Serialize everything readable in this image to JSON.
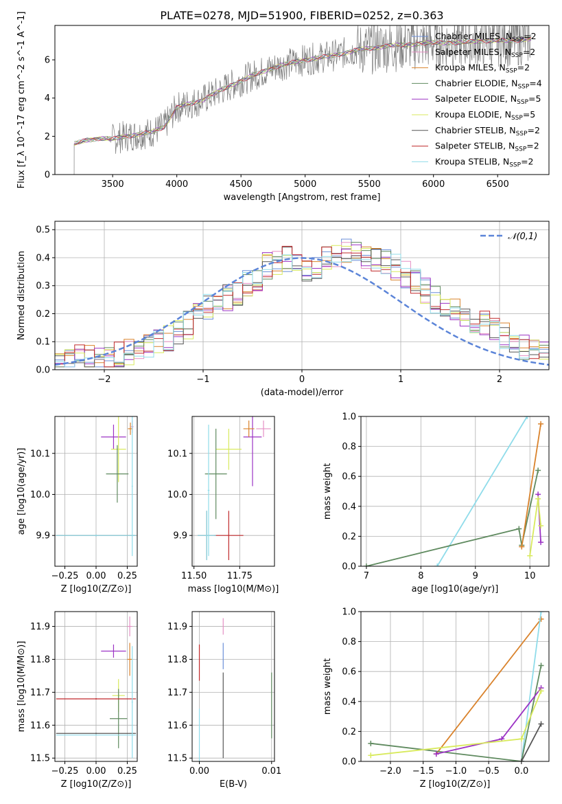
{
  "title": "PLATE=0278, MJD=51900, FIBERID=0252, z=0.363",
  "colors": {
    "Chabrier MILES": "#6a8ed8",
    "Salpeter MILES": "#e58fc4",
    "Kroupa MILES": "#d9822b",
    "Chabrier ELODIE": "#5f8a5f",
    "Salpeter ELODIE": "#9b32c4",
    "Kroupa ELODIE": "#d8ea5c",
    "Chabrier STELIB": "#555555",
    "Salpeter STELIB": "#c0282a",
    "Kroupa STELIB": "#8fdcea",
    "gauss": "#5b84d8"
  },
  "chart_data": [
    {
      "id": "spectrum",
      "type": "line",
      "xlabel": "wavelength [Angstrom, rest frame]",
      "ylabel": "Flux [f_λ 10^-17 erg cm^-2 s^-1 A^-1]",
      "xlim": [
        3050,
        6900
      ],
      "ylim": [
        0,
        7.8
      ],
      "xticks": [
        3500,
        4000,
        4500,
        5000,
        5500,
        6000,
        6500
      ],
      "yticks": [
        0,
        2,
        4,
        6
      ],
      "legend_position": "top-right",
      "legend": [
        {
          "name": "Chabrier MILES",
          "nssp": "2"
        },
        {
          "name": "Salpeter MILES",
          "nssp": "2"
        },
        {
          "name": "Kroupa MILES",
          "nssp": "2"
        },
        {
          "name": "Chabrier ELODIE",
          "nssp": "4"
        },
        {
          "name": "Salpeter ELODIE",
          "nssp": "5"
        },
        {
          "name": "Kroupa ELODIE",
          "nssp": "5"
        },
        {
          "name": "Chabrier STELIB",
          "nssp": "2"
        },
        {
          "name": "Salpeter STELIB",
          "nssp": "2"
        },
        {
          "name": "Kroupa STELIB",
          "nssp": "2"
        }
      ],
      "model_continuum": {
        "x": [
          3200,
          3300,
          3400,
          3500,
          3600,
          3700,
          3800,
          3900,
          4000,
          4200,
          4400,
          4600,
          4800,
          5000,
          5200,
          5400,
          5600,
          5800,
          6000,
          6200,
          6400,
          6600,
          6750
        ],
        "y": [
          1.6,
          1.8,
          1.9,
          1.85,
          2.0,
          2.1,
          2.2,
          2.5,
          3.5,
          3.9,
          4.6,
          5.2,
          5.7,
          6.0,
          6.2,
          6.5,
          6.7,
          6.8,
          6.9,
          6.9,
          7.0,
          7.0,
          7.1
        ]
      }
    },
    {
      "id": "residuals",
      "type": "histogram",
      "xlabel": "(data-model)/error",
      "ylabel": "Normed distribution",
      "xlim": [
        -2.5,
        2.5
      ],
      "ylim": [
        0,
        0.53
      ],
      "xticks": [
        -2,
        -1,
        0,
        1,
        2
      ],
      "yticks": [
        0.0,
        0.1,
        0.2,
        0.3,
        0.4,
        0.5
      ],
      "legend_position": "top-right",
      "legend": [
        "𝒩(0,1)"
      ],
      "bin_width": 0.1,
      "bin_start": -2.5,
      "hist_base": [
        0.03,
        0.03,
        0.04,
        0.04,
        0.05,
        0.04,
        0.05,
        0.06,
        0.07,
        0.08,
        0.1,
        0.11,
        0.14,
        0.16,
        0.2,
        0.22,
        0.26,
        0.26,
        0.28,
        0.31,
        0.33,
        0.37,
        0.39,
        0.4,
        0.39,
        0.36,
        0.37,
        0.39,
        0.4,
        0.42,
        0.43,
        0.41,
        0.39,
        0.38,
        0.37,
        0.34,
        0.31,
        0.28,
        0.25,
        0.23,
        0.21,
        0.2,
        0.18,
        0.16,
        0.14,
        0.12,
        0.1,
        0.08,
        0.06,
        0.05
      ]
    },
    {
      "id": "age-vs-Z",
      "type": "errorbar",
      "xlabel": "Z [log10(Z/Z⊙)]",
      "ylabel": "age  [log10(age/yr)]",
      "xlim": [
        -0.33,
        0.33
      ],
      "ylim": [
        9.825,
        10.19
      ],
      "xticks": [
        -0.25,
        0.0,
        0.25
      ],
      "yticks": [
        9.9,
        10.0,
        10.1
      ],
      "points": [
        {
          "series": "Salpeter ELODIE",
          "x": 0.14,
          "xerr": 0.1,
          "y": 10.14,
          "yerr": 0.03
        },
        {
          "series": "Kroupa ELODIE",
          "x": 0.18,
          "xerr": 0.06,
          "y": 10.11,
          "yerr": 0.08
        },
        {
          "series": "Chabrier ELODIE",
          "x": 0.17,
          "xerr": 0.09,
          "y": 10.05,
          "yerr": 0.07
        },
        {
          "series": "Kroupa MILES",
          "x": 0.275,
          "xerr": 0.02,
          "y": 10.16,
          "yerr": 0.015
        },
        {
          "series": "Salpeter MILES",
          "x": 0.29,
          "xerr": 0.01,
          "y": 10.165,
          "yerr": 0.015
        },
        {
          "series": "Chabrier STELIB",
          "x": 0.0,
          "xerr": 0.32,
          "y": 9.9,
          "yerr": 0.002
        },
        {
          "series": "Kroupa STELIB",
          "x": 0.0,
          "xerr": 0.32,
          "y": 9.9,
          "yerr": 0.002
        },
        {
          "series": "Kroupa STELIB",
          "x": 0.29,
          "xerr": 0.005,
          "y": 10.02,
          "yerr": 0.17
        }
      ]
    },
    {
      "id": "age-vs-mass",
      "type": "errorbar",
      "xlabel": "mass [log10(M/M⊙)]",
      "ylabel": "",
      "xlim": [
        11.49,
        11.94
      ],
      "ylim": [
        9.825,
        10.19
      ],
      "xticks": [
        11.5,
        11.75
      ],
      "yticks": [
        9.9,
        10.0,
        10.1
      ],
      "points": [
        {
          "series": "Salpeter ELODIE",
          "x": 11.82,
          "xerr": 0.05,
          "y": 10.14,
          "yerr": 0.12
        },
        {
          "series": "Kroupa ELODIE",
          "x": 11.69,
          "xerr": 0.07,
          "y": 10.11,
          "yerr": 0.05
        },
        {
          "series": "Chabrier ELODIE",
          "x": 11.62,
          "xerr": 0.06,
          "y": 10.05,
          "yerr": 0.11
        },
        {
          "series": "Kroupa MILES",
          "x": 11.8,
          "xerr": 0.03,
          "y": 10.16,
          "yerr": 0.02
        },
        {
          "series": "Salpeter MILES",
          "x": 11.88,
          "xerr": 0.04,
          "y": 10.16,
          "yerr": 0.02
        },
        {
          "series": "Salpeter STELIB",
          "x": 11.69,
          "xerr": 0.08,
          "y": 9.9,
          "yerr": 0.06
        },
        {
          "series": "Chabrier STELIB",
          "x": 11.57,
          "xerr": 0.05,
          "y": 9.9,
          "yerr": 0.06
        },
        {
          "series": "Kroupa STELIB",
          "x": 11.57,
          "xerr": 0.05,
          "y": 9.9,
          "yerr": 0.06
        },
        {
          "series": "Kroupa STELIB",
          "x": 11.58,
          "xerr": 0.005,
          "y": 10.01,
          "yerr": 0.16
        }
      ]
    },
    {
      "id": "weight-vs-age",
      "type": "line",
      "xlabel": "age  [log10(age/yr)]",
      "ylabel": "mass weight",
      "xlim": [
        6.9,
        10.35
      ],
      "ylim": [
        0,
        1
      ],
      "xticks": [
        7,
        8,
        9,
        10
      ],
      "yticks": [
        0.0,
        0.2,
        0.4,
        0.6,
        0.8,
        1.0
      ],
      "series": [
        {
          "name": "Kroupa STELIB",
          "x": [
            8.3,
            9.95
          ],
          "y": [
            0.0,
            1.0
          ]
        },
        {
          "name": "Chabrier ELODIE",
          "x": [
            7.0,
            9.8,
            9.85,
            10.15
          ],
          "y": [
            0.0,
            0.25,
            0.14,
            0.64
          ]
        },
        {
          "name": "Kroupa MILES",
          "x": [
            9.85,
            10.2
          ],
          "y": [
            0.13,
            0.95
          ]
        },
        {
          "name": "Salpeter ELODIE",
          "x": [
            10.15,
            10.2
          ],
          "y": [
            0.48,
            0.16
          ]
        },
        {
          "name": "Kroupa ELODIE",
          "x": [
            10.0,
            10.15,
            10.2
          ],
          "y": [
            0.07,
            0.45,
            0.27
          ]
        }
      ]
    },
    {
      "id": "mass-vs-Z",
      "type": "errorbar",
      "xlabel": "Z [log10(Z/Z⊙)]",
      "ylabel": "mass [log10(M/M⊙)]",
      "xlim": [
        -0.33,
        0.33
      ],
      "ylim": [
        11.49,
        11.945
      ],
      "xticks": [
        -0.25,
        0.0,
        0.25
      ],
      "yticks": [
        11.5,
        11.6,
        11.7,
        11.8,
        11.9
      ],
      "points": [
        {
          "series": "Salpeter ELODIE",
          "x": 0.14,
          "xerr": 0.1,
          "y": 11.825,
          "yerr": 0.02
        },
        {
          "series": "Kroupa ELODIE",
          "x": 0.18,
          "xerr": 0.05,
          "y": 11.69,
          "yerr": 0.05
        },
        {
          "series": "Chabrier ELODIE",
          "x": 0.18,
          "xerr": 0.07,
          "y": 11.62,
          "yerr": 0.09
        },
        {
          "series": "Salpeter STELIB",
          "x": 0.0,
          "xerr": 0.32,
          "y": 11.68,
          "yerr": 0.002
        },
        {
          "series": "Chabrier STELIB",
          "x": 0.0,
          "xerr": 0.32,
          "y": 11.575,
          "yerr": 0.002
        },
        {
          "series": "Kroupa STELIB",
          "x": 0.0,
          "xerr": 0.32,
          "y": 11.57,
          "yerr": 0.002
        },
        {
          "series": "Kroupa MILES",
          "x": 0.27,
          "xerr": 0.02,
          "y": 11.8,
          "yerr": 0.05
        },
        {
          "series": "Salpeter MILES",
          "x": 0.27,
          "xerr": 0.02,
          "y": 11.9,
          "yerr": 0.03
        },
        {
          "series": "Kroupa STELIB",
          "x": 0.29,
          "xerr": 0.005,
          "y": 11.67,
          "yerr": 0.17
        }
      ]
    },
    {
      "id": "mass-vs-EBV",
      "type": "errorbar",
      "xlabel": "E(B-V)",
      "ylabel": "",
      "xlim": [
        -0.001,
        0.0104
      ],
      "ylim": [
        11.49,
        11.945
      ],
      "xticks": [
        0.0,
        0.01
      ],
      "yticks": [
        11.5,
        11.6,
        11.7,
        11.8,
        11.9
      ],
      "points": [
        {
          "series": "Salpeter STELIB",
          "x": 0.0,
          "xerr": 0,
          "y": 11.79,
          "yerr": 0.055
        },
        {
          "series": "Kroupa STELIB",
          "x": 0.0,
          "xerr": 0,
          "y": 11.57,
          "yerr": 0.08
        },
        {
          "series": "Chabrier STELIB",
          "x": 0.0033,
          "xerr": 0,
          "y": 11.63,
          "yerr": 0.13
        },
        {
          "series": "Chabrier MILES",
          "x": 0.0033,
          "xerr": 0,
          "y": 11.81,
          "yerr": 0.04
        },
        {
          "series": "Salpeter MILES",
          "x": 0.0033,
          "xerr": 0,
          "y": 11.9,
          "yerr": 0.025
        },
        {
          "series": "Chabrier ELODIE",
          "x": 0.01,
          "xerr": 0,
          "y": 11.66,
          "yerr": 0.1
        }
      ]
    },
    {
      "id": "weight-vs-Z",
      "type": "line",
      "xlabel": "Z [log10(Z/Z⊙)]",
      "ylabel": "mass weight",
      "xlim": [
        -2.45,
        0.42
      ],
      "ylim": [
        0,
        1
      ],
      "xticks": [
        -2.0,
        -1.5,
        -1.0,
        -0.5,
        0.0
      ],
      "yticks": [
        0.0,
        0.2,
        0.4,
        0.6,
        0.8,
        1.0
      ],
      "series": [
        {
          "name": "Kroupa MILES",
          "x": [
            -1.3,
            0.3
          ],
          "y": [
            0.05,
            0.95
          ]
        },
        {
          "name": "Kroupa STELIB",
          "x": [
            0.0,
            0.3
          ],
          "y": [
            0.0,
            1.0
          ]
        },
        {
          "name": "Chabrier ELODIE",
          "x": [
            -2.3,
            0.0,
            0.3
          ],
          "y": [
            0.12,
            0.0,
            0.64
          ]
        },
        {
          "name": "Salpeter ELODIE",
          "x": [
            -1.3,
            -0.3,
            0.3
          ],
          "y": [
            0.05,
            0.15,
            0.49
          ]
        },
        {
          "name": "Kroupa ELODIE",
          "x": [
            -2.3,
            0.0,
            0.3
          ],
          "y": [
            0.04,
            0.15,
            0.47
          ]
        },
        {
          "name": "Chabrier STELIB",
          "x": [
            0.0,
            0.3
          ],
          "y": [
            0.0,
            0.25
          ]
        }
      ]
    }
  ]
}
